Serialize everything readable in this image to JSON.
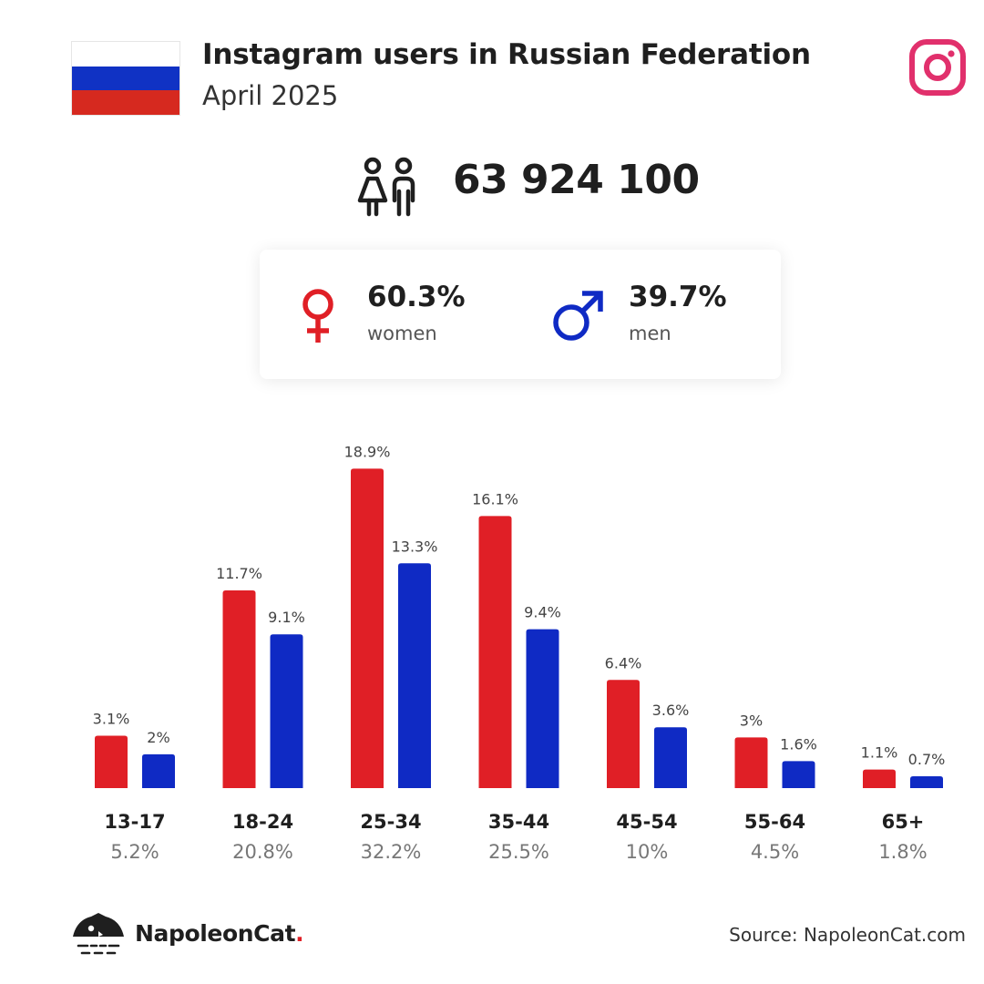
{
  "header": {
    "title": "Instagram users in Russian Federation",
    "subtitle": "April 2025"
  },
  "flag": {
    "colors": [
      "#ffffff",
      "#1032c4",
      "#d6291f"
    ]
  },
  "icons": {
    "brand": "instagram-icon",
    "users": "users-icon",
    "women": "female-symbol-icon",
    "men": "male-symbol-icon",
    "logo": "napoleoncat-logo-icon"
  },
  "total_users": "63 924 100",
  "gender": {
    "women": {
      "pct": "60.3%",
      "label": "women",
      "color": "#e01f26"
    },
    "men": {
      "pct": "39.7%",
      "label": "men",
      "color": "#0f2ac4"
    }
  },
  "chart_data": {
    "type": "bar",
    "categories": [
      "13-17",
      "18-24",
      "25-34",
      "35-44",
      "45-54",
      "55-64",
      "65+"
    ],
    "totals": [
      "5.2%",
      "20.8%",
      "32.2%",
      "25.5%",
      "10%",
      "4.5%",
      "1.8%"
    ],
    "series": [
      {
        "name": "women",
        "color": "#e01f26",
        "values": [
          3.1,
          11.7,
          18.9,
          16.1,
          6.4,
          3,
          1.1
        ],
        "labels": [
          "3.1%",
          "11.7%",
          "18.9%",
          "16.1%",
          "6.4%",
          "3%",
          "1.1%"
        ]
      },
      {
        "name": "men",
        "color": "#0f2ac4",
        "values": [
          2,
          9.1,
          13.3,
          9.4,
          3.6,
          1.6,
          0.7
        ],
        "labels": [
          "2%",
          "9.1%",
          "13.3%",
          "9.4%",
          "3.6%",
          "1.6%",
          "0.7%"
        ]
      }
    ],
    "grid": false,
    "legend": "none"
  },
  "footer": {
    "brand_name": "NapoleonCat",
    "brand_dot": ".",
    "source": "Source: NapoleonCat.com"
  }
}
